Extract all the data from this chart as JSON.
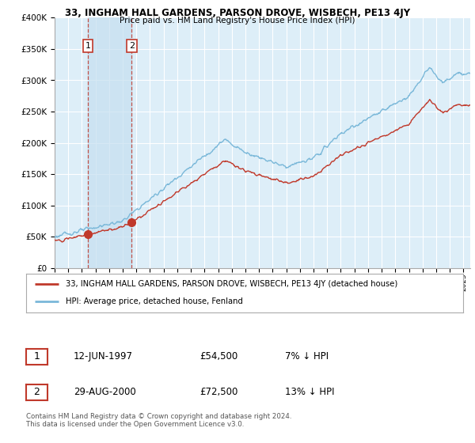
{
  "title": "33, INGHAM HALL GARDENS, PARSON DROVE, WISBECH, PE13 4JY",
  "subtitle": "Price paid vs. HM Land Registry's House Price Index (HPI)",
  "ylim": [
    0,
    400000
  ],
  "yticks": [
    0,
    50000,
    100000,
    150000,
    200000,
    250000,
    300000,
    350000,
    400000
  ],
  "xlim_start": 1995,
  "xlim_end": 2025.5,
  "legend_line1": "33, INGHAM HALL GARDENS, PARSON DROVE, WISBECH, PE13 4JY (detached house)",
  "legend_line2": "HPI: Average price, detached house, Fenland",
  "sale1_date": "12-JUN-1997",
  "sale1_price": "£54,500",
  "sale1_hpi": "7% ↓ HPI",
  "sale2_date": "29-AUG-2000",
  "sale2_price": "£72,500",
  "sale2_hpi": "13% ↓ HPI",
  "copyright": "Contains HM Land Registry data © Crown copyright and database right 2024.\nThis data is licensed under the Open Government Licence v3.0.",
  "sale1_year": 1997.45,
  "sale1_value": 54500,
  "sale2_year": 2000.66,
  "sale2_value": 72500,
  "hpi_color": "#7ab8d9",
  "price_color": "#c0392b",
  "plot_bg_color": "#ddeef8",
  "grid_color": "#ffffff",
  "shade_color": "#c5dff0"
}
